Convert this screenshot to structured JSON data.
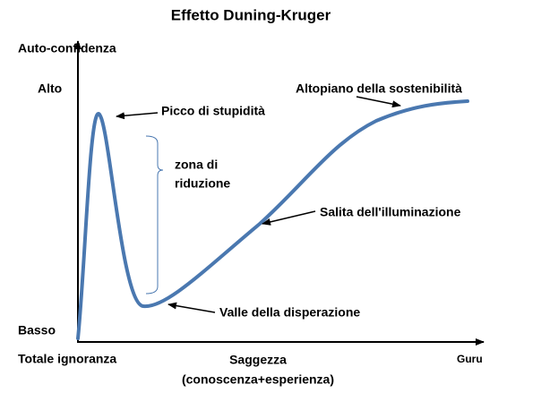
{
  "title": "Effetto Duning-Kruger",
  "axes": {
    "y_label": "Auto-confidenza",
    "y_high": "Alto",
    "y_low": "Basso",
    "x_start": "Totale ignoranza",
    "x_label": [
      "Saggezza",
      "(conoscenza+esperienza)"
    ],
    "x_end": "Guru"
  },
  "annotations": {
    "peak": "Picco di stupidità",
    "zone": [
      "zona di",
      "riduzione"
    ],
    "valley": "Valle della disperazione",
    "slope": "Salita dell'illuminazione",
    "plateau": "Altopiano della sostenibilità"
  }
}
